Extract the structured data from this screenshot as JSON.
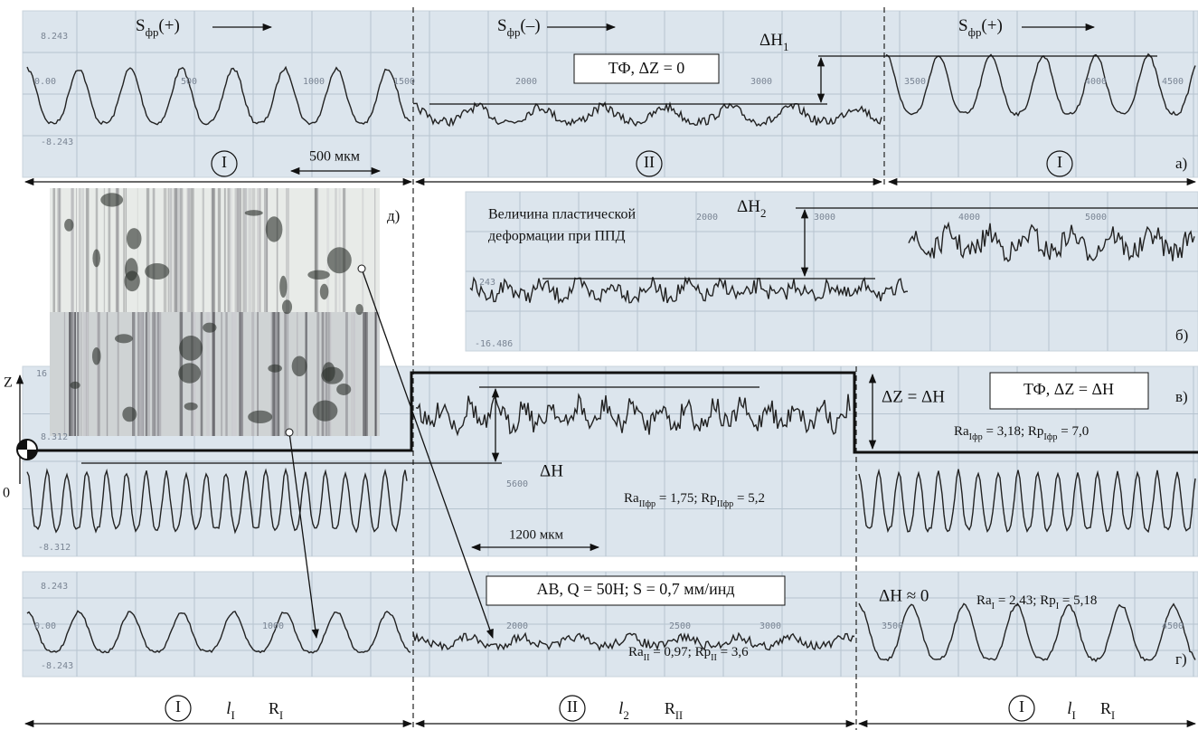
{
  "panel_a": {
    "feed_labels": [
      [
        {
          "text": "S"
        },
        {
          "text": "фр",
          "sub": true
        },
        {
          "text": "(+)"
        }
      ],
      [
        {
          "text": "S"
        },
        {
          "text": "фр",
          "sub": true
        },
        {
          "text": "(–)"
        }
      ],
      [
        {
          "text": "S"
        },
        {
          "text": "фр",
          "sub": true
        },
        {
          "text": "(+)"
        }
      ]
    ],
    "box": "ТФ, ΔZ = 0",
    "delta": [
      {
        "text": "ΔH"
      },
      {
        "text": "1",
        "sub": true
      }
    ],
    "scale": "500 мкм",
    "zones": [
      "I",
      "II",
      "I"
    ],
    "letter": "а)",
    "ticks": [
      "8.243",
      "-8.243",
      "0.00",
      "500",
      "1000",
      "1500",
      "2000",
      "3000",
      "3500",
      "4000",
      "4500"
    ]
  },
  "panel_b": {
    "caption": [
      "Величина пластической",
      "деформации при ППД"
    ],
    "delta": [
      {
        "text": "ΔH"
      },
      {
        "text": "2",
        "sub": true
      }
    ],
    "letter": "б)",
    "ticks": [
      "2000",
      "3000",
      "4000",
      "5000",
      "243",
      "-16.486"
    ]
  },
  "photos": {
    "letter": "д)"
  },
  "panel_v": {
    "axis": "Z",
    "origin": "0",
    "delta_z": "ΔZ = ΔH",
    "box": "ТФ, ΔZ = ΔH",
    "letter": "в)",
    "rough_1": [
      {
        "text": "Ra"
      },
      {
        "text": "Iфр",
        "sub": true
      },
      {
        "text": " = 3,18; Rp"
      },
      {
        "text": "Iфр",
        "sub": true
      },
      {
        "text": " = 7,0"
      }
    ],
    "delta": "ΔH",
    "rough_2": [
      {
        "text": "Ra"
      },
      {
        "text": "IIфр",
        "sub": true
      },
      {
        "text": " = 1,75; Rp"
      },
      {
        "text": "IIфр",
        "sub": true
      },
      {
        "text": " = 5,2"
      }
    ],
    "scale": "1200 мкм",
    "ticks": [
      "16",
      "8.312",
      "-8.312",
      "5600"
    ]
  },
  "panel_g": {
    "box": "АВ, Q = 50Н; S = 0,7 мм/инд",
    "delta": "ΔH ≈ 0",
    "rough_1": [
      {
        "text": "Ra"
      },
      {
        "text": "I",
        "sub": true
      },
      {
        "text": " = 2,43; Rp"
      },
      {
        "text": "I",
        "sub": true
      },
      {
        "text": " = 5,18"
      }
    ],
    "rough_2": [
      {
        "text": "Ra"
      },
      {
        "text": "II",
        "sub": true
      },
      {
        "text": " = 0,97; Rp"
      },
      {
        "text": "II",
        "sub": true
      },
      {
        "text": " = 3,6"
      }
    ],
    "letter": "г)",
    "ticks": [
      "8.243",
      "0.00",
      "1000",
      "2000",
      "2500",
      "3000",
      "3500",
      "4500",
      "-8.243"
    ]
  },
  "bottom": {
    "zones": [
      "I",
      "II",
      "I"
    ],
    "lengths": [
      [
        {
          "text": "l",
          "italic": true
        },
        {
          "text": "I",
          "sub": true
        }
      ],
      [
        {
          "text": "l",
          "italic": true
        },
        {
          "text": "2",
          "sub": true
        }
      ],
      [
        {
          "text": "l",
          "italic": true
        },
        {
          "text": "I",
          "sub": true
        }
      ]
    ],
    "rough": [
      [
        {
          "text": "R"
        },
        {
          "text": "I",
          "sub": true
        }
      ],
      [
        {
          "text": "R"
        },
        {
          "text": "II",
          "sub": true
        }
      ],
      [
        {
          "text": "R"
        },
        {
          "text": "I",
          "sub": true
        }
      ]
    ]
  }
}
